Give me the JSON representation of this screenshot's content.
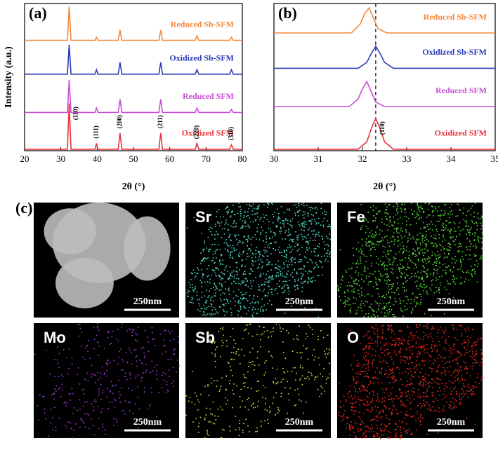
{
  "chart_data": [
    {
      "type": "line",
      "label": "(a)",
      "xlabel": "2θ (°)",
      "ylabel": "Intensity (a.u.)",
      "xlim": [
        20,
        80
      ],
      "xticks": [
        20,
        30,
        40,
        50,
        60,
        70,
        80
      ],
      "ylim": [
        0,
        100
      ],
      "x": [
        20,
        31.8,
        32.3,
        32.8,
        39.4,
        39.8,
        40.2,
        45.8,
        46.3,
        46.8,
        57,
        57.5,
        58,
        67,
        67.5,
        68,
        76.5,
        77,
        77.5,
        80
      ],
      "series": [
        {
          "name": "Oxidized SFM",
          "color": "#e8333d",
          "values": [
            1,
            1,
            32,
            1,
            1,
            5,
            1,
            1,
            12,
            1,
            1,
            12,
            1,
            1,
            5,
            1,
            1,
            4,
            1,
            1
          ]
        },
        {
          "name": "Reduced SFM",
          "color": "#c94fd6",
          "values": [
            26,
            26,
            48,
            26,
            26,
            29,
            26,
            26,
            35,
            26,
            26,
            35,
            26,
            26,
            29,
            26,
            26,
            28,
            26,
            26
          ]
        },
        {
          "name": "Oxidized Sb-SFM",
          "color": "#2a3bb5",
          "values": [
            52,
            52,
            72,
            52,
            52,
            55,
            52,
            52,
            60,
            52,
            52,
            60,
            52,
            52,
            55,
            52,
            52,
            55,
            52,
            52
          ]
        },
        {
          "name": "Reduced Sb-SFM",
          "color": "#f5883a",
          "values": [
            75,
            75,
            98,
            75,
            75,
            77,
            75,
            75,
            82,
            75,
            75,
            82,
            75,
            75,
            78,
            75,
            75,
            77,
            75,
            75
          ]
        }
      ],
      "annotations": [
        {
          "text": "(110)",
          "x": 32.3
        },
        {
          "text": "(111)",
          "x": 39.8
        },
        {
          "text": "(200)",
          "x": 46.3
        },
        {
          "text": "(211)",
          "x": 57.5
        },
        {
          "text": "(220)",
          "x": 67.5
        },
        {
          "text": "(310)",
          "x": 77
        }
      ]
    },
    {
      "type": "line",
      "label": "(b)",
      "xlabel": "2θ (°)",
      "xlim": [
        30,
        35
      ],
      "xticks": [
        30,
        31,
        32,
        33,
        34,
        35
      ],
      "ylim": [
        0,
        100
      ],
      "vline": 32.3,
      "series": [
        {
          "name": "Oxidized SFM",
          "color": "#e8333d",
          "x": [
            30,
            31.9,
            32.1,
            32.2,
            32.3,
            32.4,
            32.5,
            32.7,
            35
          ],
          "values": [
            1,
            1,
            6,
            15,
            22,
            15,
            6,
            1,
            1
          ]
        },
        {
          "name": "Reduced SFM",
          "color": "#c94fd6",
          "x": [
            30,
            31.7,
            31.9,
            32.0,
            32.1,
            32.2,
            32.3,
            32.5,
            35
          ],
          "values": [
            30,
            30,
            35,
            42,
            47,
            40,
            33,
            30,
            30
          ]
        },
        {
          "name": "Oxidized Sb-SFM",
          "color": "#2a3bb5",
          "x": [
            30,
            31.9,
            32.1,
            32.2,
            32.3,
            32.4,
            32.5,
            32.7,
            35
          ],
          "values": [
            56,
            56,
            60,
            66,
            71,
            66,
            60,
            56,
            56
          ]
        },
        {
          "name": "Reduced Sb-SFM",
          "color": "#f5883a",
          "x": [
            30,
            31.75,
            31.95,
            32.05,
            32.15,
            32.25,
            32.35,
            32.55,
            35
          ],
          "values": [
            80,
            80,
            86,
            93,
            97,
            90,
            83,
            80,
            80
          ]
        }
      ],
      "annotations": [
        {
          "text": "(110)",
          "x": 32.3
        }
      ]
    }
  ],
  "eds_maps": {
    "label": "(c)",
    "tiles": [
      {
        "scale": "250nm"
      },
      {
        "element": "Sr",
        "scale": "250nm",
        "color": "#4fd8c0"
      },
      {
        "element": "Fe",
        "scale": "250nm",
        "color": "#56d639"
      },
      {
        "element": "Mo",
        "scale": "250nm",
        "color": "#a13ad8"
      },
      {
        "element": "Sb",
        "scale": "250nm",
        "color": "#d8d84a"
      },
      {
        "element": "O",
        "scale": "250nm",
        "color": "#e8281e"
      }
    ]
  }
}
